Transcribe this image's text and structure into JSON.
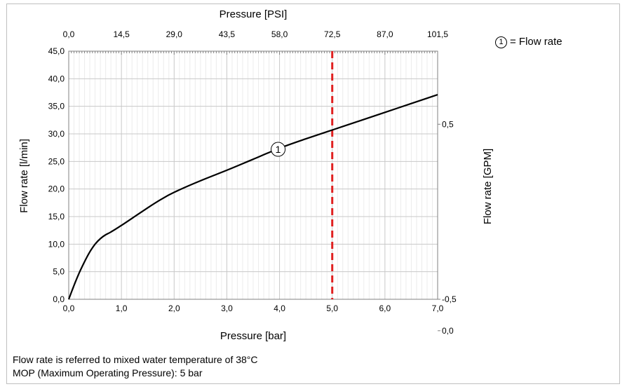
{
  "chart_data": {
    "type": "line",
    "x_bottom": {
      "label": "Pressure [bar]",
      "ticks": [
        "0,0",
        "1,0",
        "2,0",
        "3,0",
        "4,0",
        "5,0",
        "6,0",
        "7,0"
      ],
      "range": [
        0,
        7
      ]
    },
    "x_top": {
      "label": "Pressure [PSI]",
      "ticks": [
        "0,0",
        "14,5",
        "29,0",
        "43,5",
        "58,0",
        "72,5",
        "87,0",
        "101,5"
      ]
    },
    "y_left": {
      "label": "Flow rate [l/min]",
      "ticks": [
        "0,0",
        "5,0",
        "10,0",
        "15,0",
        "20,0",
        "25,0",
        "30,0",
        "35,0",
        "40,0",
        "45,0"
      ],
      "range": [
        0,
        45
      ]
    },
    "y_right": {
      "label": "Flow rate [GPM]",
      "ticks": [
        "-0,5",
        "0,0",
        "0,5"
      ]
    },
    "series": [
      {
        "marker": "1",
        "color": "#000000",
        "x": [
          0,
          0.1,
          0.2,
          0.3,
          0.4,
          0.5,
          0.6,
          0.7,
          0.8,
          1.0,
          1.25,
          1.5,
          1.75,
          2.0,
          2.5,
          3.0,
          3.5,
          4.0,
          4.5,
          5.0,
          5.5,
          6.0,
          6.5,
          7.0
        ],
        "y": [
          0,
          2.5,
          4.8,
          6.8,
          8.6,
          10.0,
          11.0,
          11.7,
          12.2,
          13.4,
          15.0,
          16.6,
          18.1,
          19.4,
          21.5,
          23.4,
          25.4,
          27.4,
          29.1,
          30.7,
          32.3,
          33.9,
          35.5,
          37.1
        ]
      }
    ],
    "mop_line": {
      "x": 5.0,
      "color": "#e02020",
      "style": "dashed"
    },
    "grid": true
  },
  "legend": {
    "marker": "1",
    "text": "= Flow rate"
  },
  "notes": [
    "Flow rate is referred to mixed water temperature of 38°C",
    "MOP (Maximum Operating Pressure): 5 bar"
  ]
}
